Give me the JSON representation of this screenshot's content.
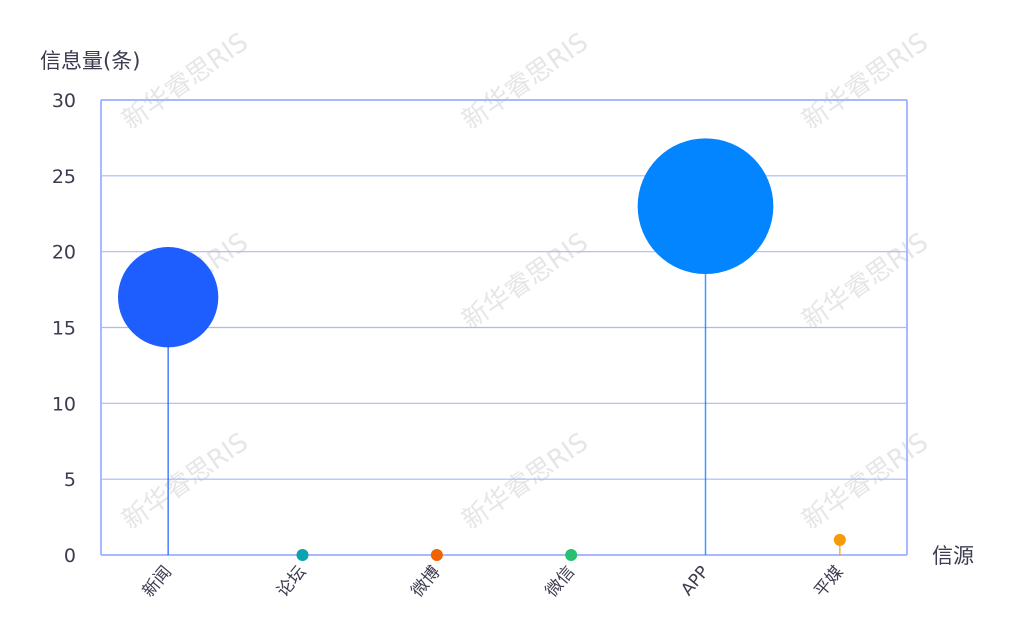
{
  "watermark": "新华睿思RIS",
  "chart_data": {
    "type": "lollipop-bubble",
    "ylabel": "信息量(条)",
    "xlabel": "信源",
    "ylim": [
      0,
      30
    ],
    "yticks": [
      0,
      5,
      10,
      15,
      20,
      25,
      30
    ],
    "grid": true,
    "categories": [
      "新闻",
      "论坛",
      "微博",
      "微信",
      "APP",
      "平媒"
    ],
    "values": [
      17,
      0,
      0,
      0,
      23,
      1
    ],
    "colors": [
      "#1e5eff",
      "#0aa3b0",
      "#f06400",
      "#27c06e",
      "#0285ff",
      "#f59a0a"
    ],
    "axis_color": "#a9b8ff"
  }
}
